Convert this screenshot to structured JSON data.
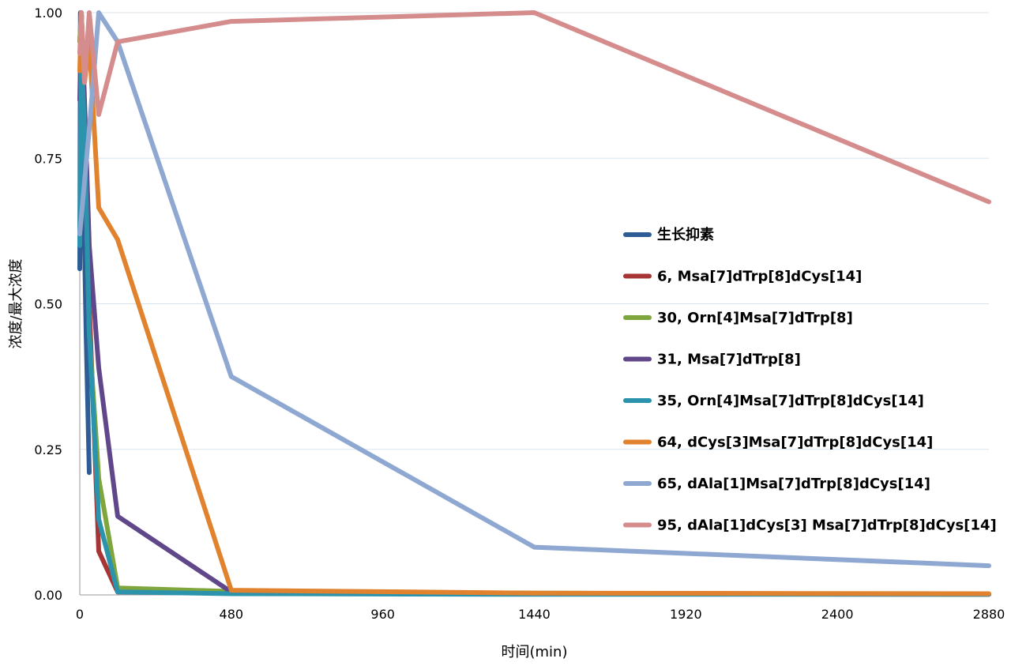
{
  "chart_data": {
    "type": "line",
    "title": "",
    "xlabel": "时间(min)",
    "ylabel": "浓度/最大浓度",
    "xlim": [
      0,
      2880
    ],
    "ylim": [
      0,
      1
    ],
    "xticks": [
      0,
      480,
      960,
      1440,
      1920,
      2400,
      2880
    ],
    "yticks": [
      0.0,
      0.25,
      0.5,
      0.75,
      1.0
    ],
    "ytick_labels": [
      "0.00",
      "0.25",
      "0.50",
      "0.75",
      "1.00"
    ],
    "grid": "horizontal",
    "legend_position": "right",
    "series": [
      {
        "name": "生长抑素",
        "color": "#2e5c94",
        "x": [
          0,
          2,
          5,
          10,
          15,
          20,
          30
        ],
        "y": [
          0.56,
          1.0,
          0.9,
          0.75,
          0.6,
          0.45,
          0.21
        ]
      },
      {
        "name": "6, Msa[7]dTrp[8]dCys[14]",
        "color": "#a83535",
        "x": [
          0,
          5,
          15,
          30,
          60,
          120,
          480,
          1440,
          2880
        ],
        "y": [
          0.95,
          1.0,
          0.8,
          0.5,
          0.075,
          0.005,
          0.003,
          0.002,
          0.001
        ]
      },
      {
        "name": "30, Orn[4]Msa[7]dTrp[8]",
        "color": "#7fa63c",
        "x": [
          0,
          5,
          15,
          30,
          60,
          120,
          480,
          1440,
          2880
        ],
        "y": [
          0.95,
          1.0,
          0.8,
          0.45,
          0.2,
          0.012,
          0.006,
          0.003,
          0.001
        ]
      },
      {
        "name": "31, Msa[7]dTrp[8]",
        "color": "#60478a",
        "x": [
          0,
          5,
          15,
          30,
          60,
          120,
          480,
          1440,
          2880
        ],
        "y": [
          0.85,
          1.0,
          0.85,
          0.6,
          0.39,
          0.135,
          0.005,
          0.002,
          0.001
        ]
      },
      {
        "name": "35, Orn[4]Msa[7]dTrp[8]dCys[14]",
        "color": "#2c93ad",
        "x": [
          0,
          5,
          15,
          30,
          60,
          120,
          480,
          1440,
          2880
        ],
        "y": [
          0.6,
          0.93,
          0.8,
          0.45,
          0.13,
          0.005,
          0.002,
          0.001,
          0.001
        ]
      },
      {
        "name": "64, dCys[3]Msa[7]dTrp[8]dCys[14]",
        "color": "#e0822e",
        "x": [
          0,
          5,
          15,
          30,
          60,
          120,
          480,
          1440,
          2880
        ],
        "y": [
          0.9,
          1.0,
          0.88,
          0.95,
          0.665,
          0.61,
          0.008,
          0.003,
          0.002
        ]
      },
      {
        "name": "65, dAla[1]Msa[7]dTrp[8]dCys[14]",
        "color": "#8ea8d1",
        "x": [
          0,
          30,
          60,
          120,
          480,
          1440,
          2880
        ],
        "y": [
          0.62,
          0.8,
          1.0,
          0.95,
          0.375,
          0.082,
          0.05
        ]
      },
      {
        "name": "95, dAla[1]dCys[3] Msa[7]dTrp[8]dCys[14]",
        "color": "#d48d8c",
        "x": [
          0,
          5,
          15,
          30,
          60,
          120,
          480,
          1440,
          2880
        ],
        "y": [
          0.93,
          1.0,
          0.88,
          1.0,
          0.825,
          0.95,
          0.985,
          1.0,
          0.675
        ]
      }
    ]
  }
}
